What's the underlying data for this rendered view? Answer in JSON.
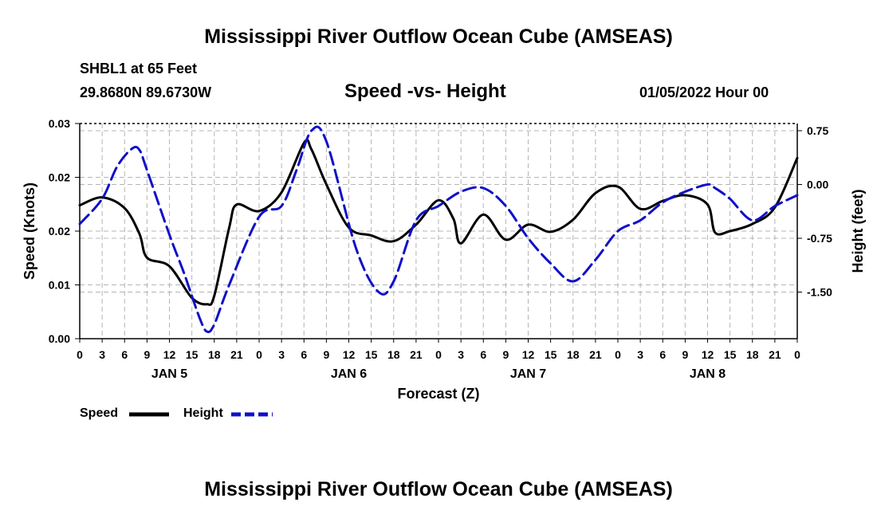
{
  "page": {
    "title_top": "Mississippi River Outflow Ocean Cube (AMSEAS)",
    "title_bottom": "Mississippi River Outflow Ocean Cube (AMSEAS)",
    "station_line": "SHBL1 at 65 Feet",
    "coords_line": "29.8680N  89.6730W",
    "date_line": "01/05/2022 Hour 00"
  },
  "colors": {
    "speed": "#000000",
    "height": "#1010c8",
    "grid": "#b4b4b4"
  },
  "chart_data": {
    "type": "line",
    "title": "Speed -vs- Height",
    "xlabel": "Forecast (Z)",
    "ylabel_left": "Speed (Knots)",
    "ylabel_right": "Height (feet)",
    "x_range_hours": [
      0,
      96
    ],
    "x_tick_labels": [
      "0",
      "3",
      "6",
      "9",
      "12",
      "15",
      "18",
      "21",
      "0",
      "3",
      "6",
      "9",
      "12",
      "15",
      "18",
      "21",
      "0",
      "3",
      "6",
      "9",
      "12",
      "15",
      "18",
      "21",
      "0",
      "3",
      "6",
      "9",
      "12",
      "15",
      "18",
      "21",
      "0"
    ],
    "day_labels": [
      {
        "label": "JAN 5",
        "hour": 12
      },
      {
        "label": "JAN 6",
        "hour": 36
      },
      {
        "label": "JAN 7",
        "hour": 60
      },
      {
        "label": "JAN 8",
        "hour": 84
      }
    ],
    "left_axis": {
      "range": [
        0,
        0.03
      ],
      "ticks": [
        0,
        0.0075,
        0.015,
        0.0225,
        0.03
      ],
      "tick_labels": [
        "0.00",
        "0.01",
        "0.02",
        "0.02",
        "0.03"
      ]
    },
    "right_axis": {
      "range": [
        -2.15,
        0.85
      ],
      "ticks": [
        0.75,
        0.0,
        -0.75,
        -1.5
      ],
      "tick_labels": [
        "0.75",
        "0.00",
        "-0.75",
        "-1.50"
      ]
    },
    "grid": true,
    "legend": "bottom-left",
    "series": [
      {
        "name": "Speed",
        "axis": "left",
        "style": "solid",
        "x": [
          0,
          3,
          6,
          8,
          9,
          12,
          15,
          17,
          18,
          20,
          21,
          24,
          27,
          30,
          31,
          33,
          36,
          39,
          42,
          45,
          48,
          50,
          51,
          54,
          57,
          60,
          63,
          66,
          69,
          72,
          75,
          78,
          81,
          84,
          85,
          87,
          90,
          93,
          96
        ],
        "y": [
          0.0186,
          0.0197,
          0.0182,
          0.0146,
          0.0113,
          0.0101,
          0.0057,
          0.0048,
          0.006,
          0.0155,
          0.0187,
          0.0178,
          0.0204,
          0.0273,
          0.0264,
          0.0215,
          0.0155,
          0.0144,
          0.0136,
          0.0159,
          0.0193,
          0.0167,
          0.0133,
          0.0173,
          0.0138,
          0.0159,
          0.0149,
          0.0166,
          0.0203,
          0.0212,
          0.0181,
          0.0192,
          0.02,
          0.0187,
          0.0148,
          0.015,
          0.016,
          0.0183,
          0.0252
        ]
      },
      {
        "name": "Height",
        "axis": "right",
        "style": "dashed",
        "x": [
          0,
          3,
          5,
          7,
          8,
          9,
          12,
          14,
          16,
          17,
          18,
          20,
          24,
          27,
          29,
          31,
          33,
          37,
          40,
          42,
          45,
          48,
          51,
          54,
          57,
          60,
          63,
          66,
          69,
          72,
          75,
          78,
          81,
          84,
          85,
          87,
          90,
          93,
          96
        ],
        "y": [
          -0.55,
          -0.2,
          0.25,
          0.5,
          0.48,
          0.2,
          -0.7,
          -1.25,
          -1.85,
          -2.05,
          -1.95,
          -1.4,
          -0.45,
          -0.3,
          0.2,
          0.75,
          0.6,
          -0.9,
          -1.5,
          -1.35,
          -0.5,
          -0.3,
          -0.1,
          -0.05,
          -0.3,
          -0.75,
          -1.1,
          -1.35,
          -1.05,
          -0.65,
          -0.5,
          -0.25,
          -0.1,
          0.0,
          -0.05,
          -0.2,
          -0.5,
          -0.3,
          -0.15
        ]
      }
    ]
  },
  "legend": {
    "speed_label": "Speed",
    "height_label": "Height"
  }
}
